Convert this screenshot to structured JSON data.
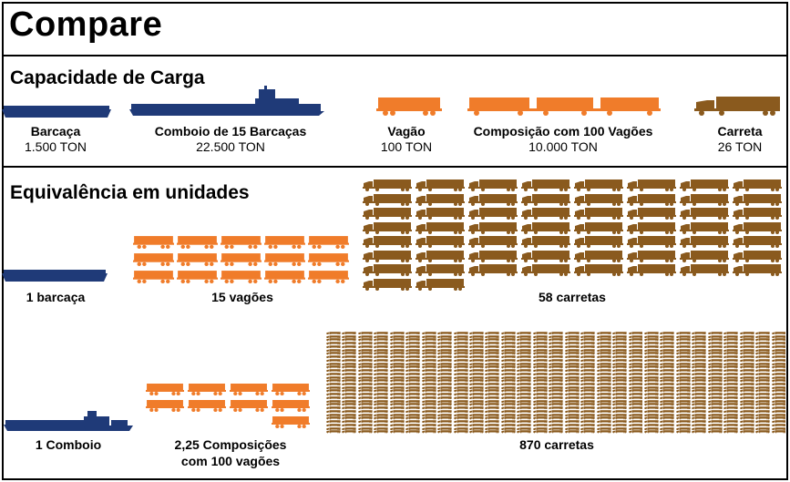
{
  "title": "Compare",
  "capacity": {
    "heading": "Capacidade de Carga",
    "items": [
      {
        "name": "Barcaça",
        "value": "1.500 TON"
      },
      {
        "name": "Comboio de 15 Barcaças",
        "value": "22.500 TON"
      },
      {
        "name": "Vagão",
        "value": "100 TON"
      },
      {
        "name": "Composição com 100 Vagões",
        "value": "10.000 TON"
      },
      {
        "name": "Carreta",
        "value": "26 TON"
      }
    ]
  },
  "equivalence": {
    "heading": "Equivalência em unidades",
    "row1": {
      "barge": "1 barcaça",
      "wagons": "15 vagões",
      "wagon_count": 15,
      "trucks": "58 carretas",
      "truck_count": 58
    },
    "row2": {
      "convoy": "1 Comboio",
      "compositions_line1": "2,25 Composições",
      "compositions_line2": "com 100 vagões",
      "trucks": "870 carretas",
      "truck_count": 870
    }
  },
  "colors": {
    "barge": "#1f3a78",
    "wagon": "#f07c2a",
    "truck": "#8a5a1e",
    "border": "#000000"
  }
}
